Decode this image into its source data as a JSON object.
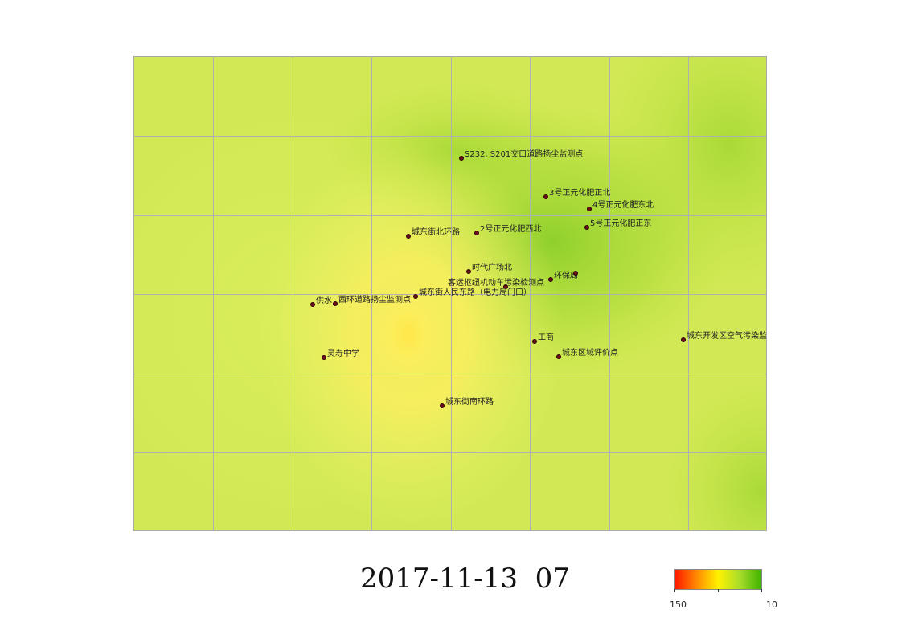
{
  "map": {
    "stations": [
      {
        "label": "S232, S201交口道路扬尘监测点"
      },
      {
        "label": "3号正元化肥正北"
      },
      {
        "label": "4号正元化肥东北"
      },
      {
        "label": "5号正元化肥正东"
      },
      {
        "label": "城东街北环路"
      },
      {
        "label": "2号正元化肥西北"
      },
      {
        "label": "时代广场北"
      },
      {
        "label": "环保局"
      },
      {
        "label": "客运枢纽机动车污染检测点"
      },
      {
        "label": "城东街人民东路（电力局门口）"
      },
      {
        "label": "供水"
      },
      {
        "label": "西环道路扬尘监测点"
      },
      {
        "label": "工商"
      },
      {
        "label": "城东开发区空气污染监测点"
      },
      {
        "label": "城东区域评价点"
      },
      {
        "label": "灵寿中学"
      },
      {
        "label": "城东街南环路"
      }
    ]
  },
  "timestamp": "2017-11-13  07",
  "legend": {
    "min_label": "150",
    "max_label": "10",
    "colors": [
      "#ff1a00",
      "#ff8a00",
      "#fff200",
      "#a8dc2a",
      "#3fb400"
    ]
  }
}
